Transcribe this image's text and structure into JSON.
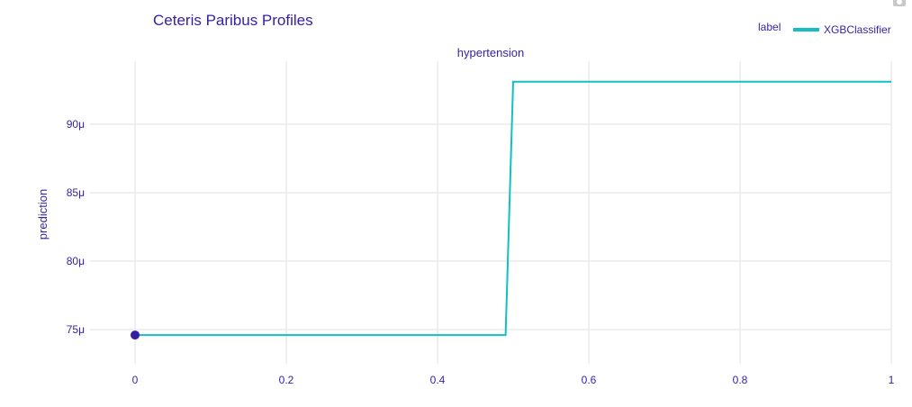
{
  "chart_data": {
    "type": "line",
    "title": "Ceteris Paribus Profiles",
    "subtitle": "hypertension",
    "ylabel": "prediction",
    "xlabel": "",
    "xlim": [
      0,
      1
    ],
    "ylim": [
      7.25e-05,
      9.46e-05
    ],
    "x_ticks": [
      0,
      0.2,
      0.4,
      0.6,
      0.8,
      1
    ],
    "x_tick_labels": [
      "0",
      "0.2",
      "0.4",
      "0.6",
      "0.8",
      "1"
    ],
    "y_ticks": [
      7.5e-05,
      8e-05,
      8.5e-05,
      9e-05
    ],
    "y_tick_labels": [
      "75μ",
      "80μ",
      "85μ",
      "90μ"
    ],
    "grid": true,
    "legend": {
      "title": "label",
      "position": "top-right"
    },
    "series": [
      {
        "name": "XGBClassifier",
        "color": "#12bfc5",
        "x": [
          0,
          0.49,
          0.5,
          1
        ],
        "y": [
          7.46e-05,
          7.46e-05,
          9.31e-05,
          9.31e-05
        ]
      }
    ],
    "observation": {
      "x": 0,
      "y": 7.46e-05,
      "color": "#371ea3"
    }
  },
  "toolbar": {
    "camera_icon": "camera-icon"
  }
}
